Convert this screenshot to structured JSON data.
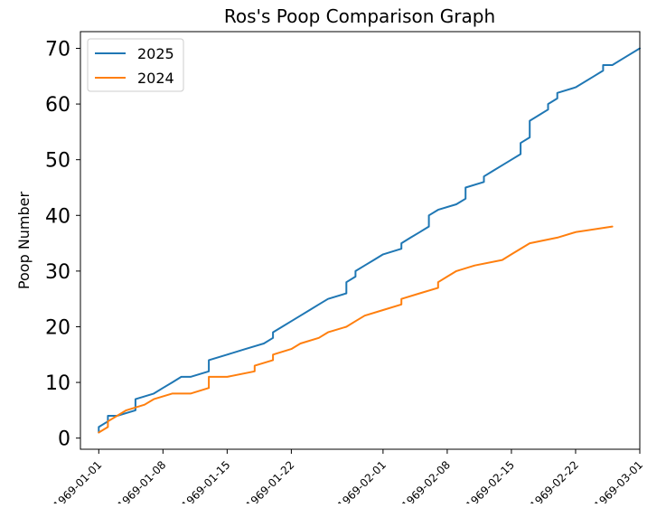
{
  "chart_data": {
    "type": "line",
    "title": "Ros's Poop Comparison Graph",
    "xlabel": "",
    "ylabel": "Poop Number",
    "x_axis": {
      "kind": "date",
      "range": [
        "1968-12-30",
        "1969-03-01"
      ],
      "ticks": [
        "1969-01-01",
        "1969-01-08",
        "1969-01-15",
        "1969-01-22",
        "1969-02-01",
        "1969-02-08",
        "1969-02-15",
        "1969-02-22",
        "1969-03-01"
      ]
    },
    "y_axis": {
      "range": [
        -2,
        73
      ],
      "ticks": [
        0,
        10,
        20,
        30,
        40,
        50,
        60,
        70
      ]
    },
    "grid": false,
    "legend": "top-left",
    "series": [
      {
        "name": "2025",
        "color": "#1f77b4",
        "points": [
          [
            "1969-01-01",
            1
          ],
          [
            "1969-01-01",
            2
          ],
          [
            "1969-01-02",
            3
          ],
          [
            "1969-01-02",
            4
          ],
          [
            "1969-01-03",
            4
          ],
          [
            "1969-01-05",
            5
          ],
          [
            "1969-01-05",
            6
          ],
          [
            "1969-01-05",
            7
          ],
          [
            "1969-01-07",
            8
          ],
          [
            "1969-01-08",
            9
          ],
          [
            "1969-01-09",
            10
          ],
          [
            "1969-01-10",
            11
          ],
          [
            "1969-01-11",
            11
          ],
          [
            "1969-01-13",
            12
          ],
          [
            "1969-01-13",
            13
          ],
          [
            "1969-01-13",
            14
          ],
          [
            "1969-01-15",
            15
          ],
          [
            "1969-01-17",
            16
          ],
          [
            "1969-01-19",
            17
          ],
          [
            "1969-01-19",
            17
          ],
          [
            "1969-01-20",
            18
          ],
          [
            "1969-01-20",
            19
          ],
          [
            "1969-01-21",
            20
          ],
          [
            "1969-01-22",
            21
          ],
          [
            "1969-01-23",
            22
          ],
          [
            "1969-01-24",
            23
          ],
          [
            "1969-01-25",
            24
          ],
          [
            "1969-01-26",
            25
          ],
          [
            "1969-01-28",
            26
          ],
          [
            "1969-01-28",
            27
          ],
          [
            "1969-01-28",
            28
          ],
          [
            "1969-01-29",
            29
          ],
          [
            "1969-01-29",
            30
          ],
          [
            "1969-01-30",
            31
          ],
          [
            "1969-01-31",
            32
          ],
          [
            "1969-02-01",
            33
          ],
          [
            "1969-02-03",
            34
          ],
          [
            "1969-02-03",
            35
          ],
          [
            "1969-02-04",
            36
          ],
          [
            "1969-02-05",
            37
          ],
          [
            "1969-02-06",
            38
          ],
          [
            "1969-02-06",
            39
          ],
          [
            "1969-02-06",
            40
          ],
          [
            "1969-02-07",
            41
          ],
          [
            "1969-02-09",
            42
          ],
          [
            "1969-02-10",
            43
          ],
          [
            "1969-02-10",
            44
          ],
          [
            "1969-02-10",
            45
          ],
          [
            "1969-02-12",
            46
          ],
          [
            "1969-02-12",
            47
          ],
          [
            "1969-02-13",
            48
          ],
          [
            "1969-02-14",
            49
          ],
          [
            "1969-02-15",
            50
          ],
          [
            "1969-02-16",
            51
          ],
          [
            "1969-02-16",
            52
          ],
          [
            "1969-02-16",
            53
          ],
          [
            "1969-02-17",
            54
          ],
          [
            "1969-02-17",
            55
          ],
          [
            "1969-02-17",
            56
          ],
          [
            "1969-02-17",
            57
          ],
          [
            "1969-02-18",
            58
          ],
          [
            "1969-02-19",
            59
          ],
          [
            "1969-02-19",
            60
          ],
          [
            "1969-02-20",
            61
          ],
          [
            "1969-02-20",
            62
          ],
          [
            "1969-02-22",
            63
          ],
          [
            "1969-02-24",
            65
          ],
          [
            "1969-02-25",
            66
          ],
          [
            "1969-02-25",
            67
          ],
          [
            "1969-02-26",
            67
          ],
          [
            "1969-02-27",
            68
          ],
          [
            "1969-03-01",
            70
          ]
        ]
      },
      {
        "name": "2024",
        "color": "#ff7f0e",
        "points": [
          [
            "1969-01-01",
            1
          ],
          [
            "1969-01-02",
            2
          ],
          [
            "1969-01-02",
            3
          ],
          [
            "1969-01-03",
            4
          ],
          [
            "1969-01-04",
            5
          ],
          [
            "1969-01-06",
            6
          ],
          [
            "1969-01-07",
            7
          ],
          [
            "1969-01-09",
            8
          ],
          [
            "1969-01-11",
            8
          ],
          [
            "1969-01-13",
            9
          ],
          [
            "1969-01-13",
            10
          ],
          [
            "1969-01-13",
            11
          ],
          [
            "1969-01-15",
            11
          ],
          [
            "1969-01-18",
            12
          ],
          [
            "1969-01-18",
            13
          ],
          [
            "1969-01-20",
            14
          ],
          [
            "1969-01-20",
            15
          ],
          [
            "1969-01-22",
            16
          ],
          [
            "1969-01-23",
            17
          ],
          [
            "1969-01-25",
            18
          ],
          [
            "1969-01-26",
            19
          ],
          [
            "1969-01-28",
            20
          ],
          [
            "1969-01-29",
            21
          ],
          [
            "1969-01-30",
            22
          ],
          [
            "1969-02-01",
            23
          ],
          [
            "1969-02-03",
            24
          ],
          [
            "1969-02-03",
            25
          ],
          [
            "1969-02-05",
            26
          ],
          [
            "1969-02-07",
            27
          ],
          [
            "1969-02-07",
            28
          ],
          [
            "1969-02-08",
            29
          ],
          [
            "1969-02-09",
            30
          ],
          [
            "1969-02-11",
            31
          ],
          [
            "1969-02-14",
            32
          ],
          [
            "1969-02-15",
            33
          ],
          [
            "1969-02-17",
            35
          ],
          [
            "1969-02-20",
            36
          ],
          [
            "1969-02-22",
            37
          ],
          [
            "1969-02-26",
            38
          ]
        ]
      }
    ]
  }
}
